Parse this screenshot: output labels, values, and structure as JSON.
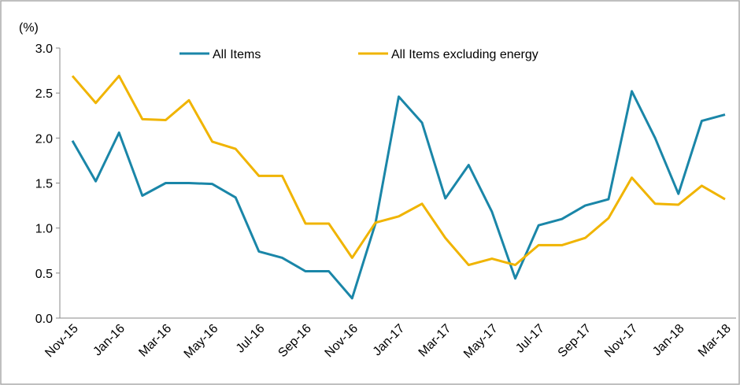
{
  "chart_data": {
    "type": "line",
    "y_unit": "(%)",
    "categories": [
      "Nov-15",
      null,
      "Jan-16",
      null,
      "Mar-16",
      null,
      "May-16",
      null,
      "Jul-16",
      null,
      "Sep-16",
      null,
      "Nov-16",
      null,
      "Jan-17",
      null,
      "Mar-17",
      null,
      "May-17",
      null,
      "Jul-17",
      null,
      "Sep-17",
      null,
      "Nov-17",
      null,
      "Jan-18",
      null,
      "Mar-18"
    ],
    "series": [
      {
        "name": "All Items",
        "color": "#1a86a8",
        "values": [
          1.97,
          1.52,
          2.06,
          1.36,
          1.5,
          1.5,
          1.49,
          1.34,
          0.74,
          0.67,
          0.52,
          0.52,
          0.22,
          1.05,
          2.46,
          2.17,
          1.33,
          1.7,
          1.18,
          0.44,
          1.03,
          1.1,
          1.25,
          1.32,
          2.52,
          2.0,
          1.38,
          2.19,
          2.26
        ]
      },
      {
        "name": "All Items excluding energy",
        "color": "#f0b400",
        "values": [
          2.69,
          2.39,
          2.69,
          2.21,
          2.2,
          2.42,
          1.96,
          1.88,
          1.58,
          1.58,
          1.05,
          1.05,
          0.67,
          1.06,
          1.13,
          1.27,
          0.89,
          0.59,
          0.66,
          0.59,
          0.81,
          0.81,
          0.89,
          1.11,
          1.56,
          1.27,
          1.26,
          1.47,
          1.32
        ]
      }
    ],
    "ylim": [
      0,
      3
    ],
    "yticks": [
      {
        "value": 0,
        "label": "0.0"
      },
      {
        "value": 0.5,
        "label": "0.5"
      },
      {
        "value": 1,
        "label": "1.0"
      },
      {
        "value": 1.5,
        "label": "1.5"
      },
      {
        "value": 2,
        "label": "2.0"
      },
      {
        "value": 2.5,
        "label": "2.5"
      },
      {
        "value": 3,
        "label": "3.0"
      }
    ],
    "legend": "top"
  }
}
